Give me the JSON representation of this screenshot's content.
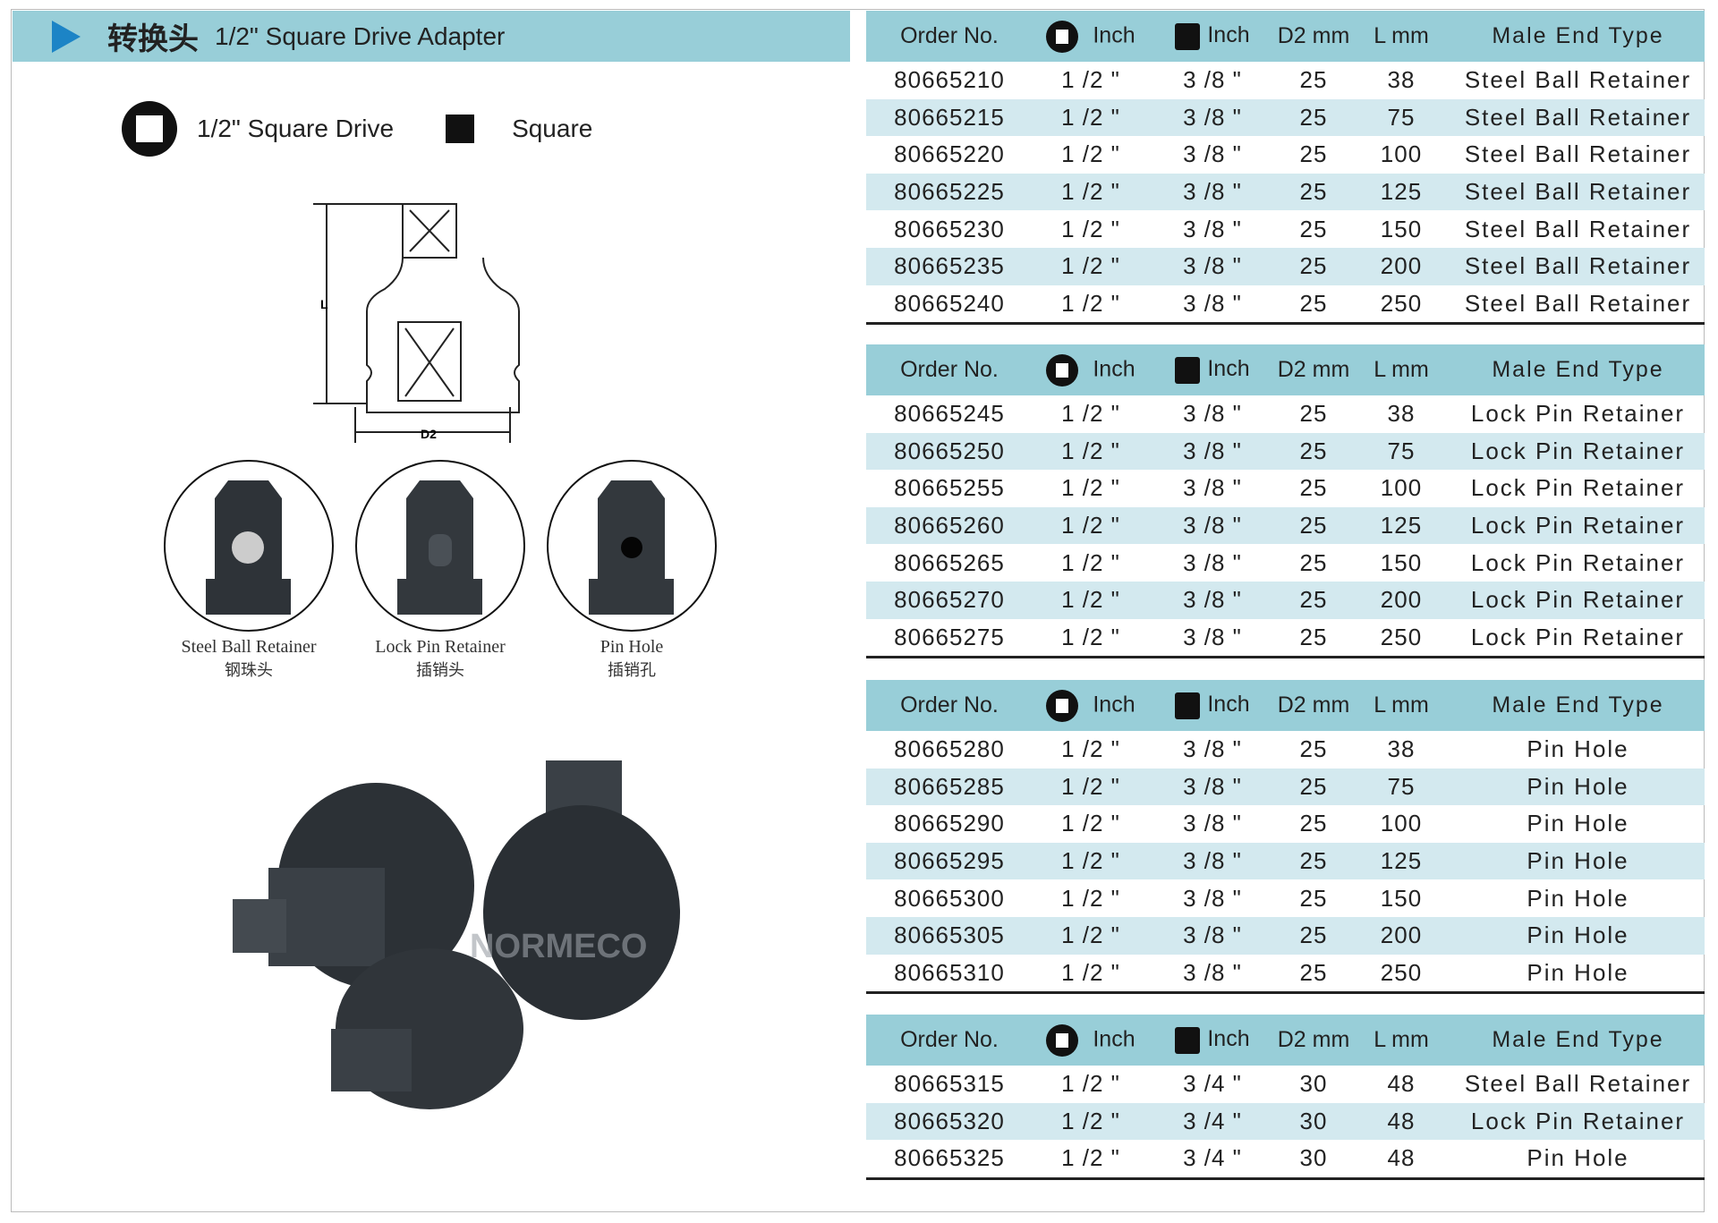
{
  "header": {
    "title_cn": "转换头",
    "title_en": "1/2\" Square Drive Adapter"
  },
  "legend": {
    "drive_label": "1/2\" Square Drive",
    "square_label": "Square"
  },
  "diagram": {
    "length_label": "L",
    "diameter_label": "D2"
  },
  "retainer_types": [
    {
      "label": "Steel Ball Retainer",
      "label_cn": "钢珠头"
    },
    {
      "label": "Lock Pin Retainer",
      "label_cn": "插销头"
    },
    {
      "label": "Pin Hole",
      "label_cn": "插销孔"
    }
  ],
  "watermark": "NORMECO",
  "table_headers": {
    "order_no": "Order No.",
    "drive_inch": "Inch",
    "square_inch": "Inch",
    "d2": "D2 mm",
    "l": "L mm",
    "type": "Male End Type"
  },
  "tables": [
    {
      "rows": [
        [
          "80665210",
          "1 /2 \"",
          "3 /8 \"",
          "25",
          "38",
          "Steel Ball Retainer"
        ],
        [
          "80665215",
          "1 /2 \"",
          "3 /8 \"",
          "25",
          "75",
          "Steel Ball Retainer"
        ],
        [
          "80665220",
          "1 /2 \"",
          "3 /8 \"",
          "25",
          "100",
          "Steel Ball Retainer"
        ],
        [
          "80665225",
          "1 /2 \"",
          "3 /8 \"",
          "25",
          "125",
          "Steel Ball Retainer"
        ],
        [
          "80665230",
          "1 /2 \"",
          "3 /8 \"",
          "25",
          "150",
          "Steel Ball Retainer"
        ],
        [
          "80665235",
          "1 /2 \"",
          "3 /8 \"",
          "25",
          "200",
          "Steel Ball Retainer"
        ],
        [
          "80665240",
          "1 /2 \"",
          "3 /8 \"",
          "25",
          "250",
          "Steel Ball Retainer"
        ]
      ]
    },
    {
      "rows": [
        [
          "80665245",
          "1 /2 \"",
          "3 /8 \"",
          "25",
          "38",
          "Lock Pin Retainer"
        ],
        [
          "80665250",
          "1 /2 \"",
          "3 /8 \"",
          "25",
          "75",
          "Lock Pin Retainer"
        ],
        [
          "80665255",
          "1 /2 \"",
          "3 /8 \"",
          "25",
          "100",
          "Lock Pin Retainer"
        ],
        [
          "80665260",
          "1 /2 \"",
          "3 /8 \"",
          "25",
          "125",
          "Lock Pin Retainer"
        ],
        [
          "80665265",
          "1 /2 \"",
          "3 /8 \"",
          "25",
          "150",
          "Lock Pin Retainer"
        ],
        [
          "80665270",
          "1 /2 \"",
          "3 /8 \"",
          "25",
          "200",
          "Lock Pin Retainer"
        ],
        [
          "80665275",
          "1 /2 \"",
          "3 /8 \"",
          "25",
          "250",
          "Lock Pin Retainer"
        ]
      ]
    },
    {
      "rows": [
        [
          "80665280",
          "1 /2 \"",
          "3 /8 \"",
          "25",
          "38",
          "Pin Hole"
        ],
        [
          "80665285",
          "1 /2 \"",
          "3 /8 \"",
          "25",
          "75",
          "Pin Hole"
        ],
        [
          "80665290",
          "1 /2 \"",
          "3 /8 \"",
          "25",
          "100",
          "Pin Hole"
        ],
        [
          "80665295",
          "1 /2 \"",
          "3 /8 \"",
          "25",
          "125",
          "Pin Hole"
        ],
        [
          "80665300",
          "1 /2 \"",
          "3 /8 \"",
          "25",
          "150",
          "Pin Hole"
        ],
        [
          "80665305",
          "1 /2 \"",
          "3 /8 \"",
          "25",
          "200",
          "Pin Hole"
        ],
        [
          "80665310",
          "1 /2 \"",
          "3 /8 \"",
          "25",
          "250",
          "Pin Hole"
        ]
      ]
    },
    {
      "rows": [
        [
          "80665315",
          "1 /2 \"",
          "3 /4 \"",
          "30",
          "48",
          "Steel Ball Retainer"
        ],
        [
          "80665320",
          "1 /2 \"",
          "3 /4 \"",
          "30",
          "48",
          "Lock Pin Retainer"
        ],
        [
          "80665325",
          "1 /2 \"",
          "3 /4 \"",
          "30",
          "48",
          "Pin Hole"
        ]
      ]
    }
  ],
  "colors": {
    "band": "#98ced8",
    "alt_row": "#d3e9ef",
    "accent": "#1c84c6"
  }
}
